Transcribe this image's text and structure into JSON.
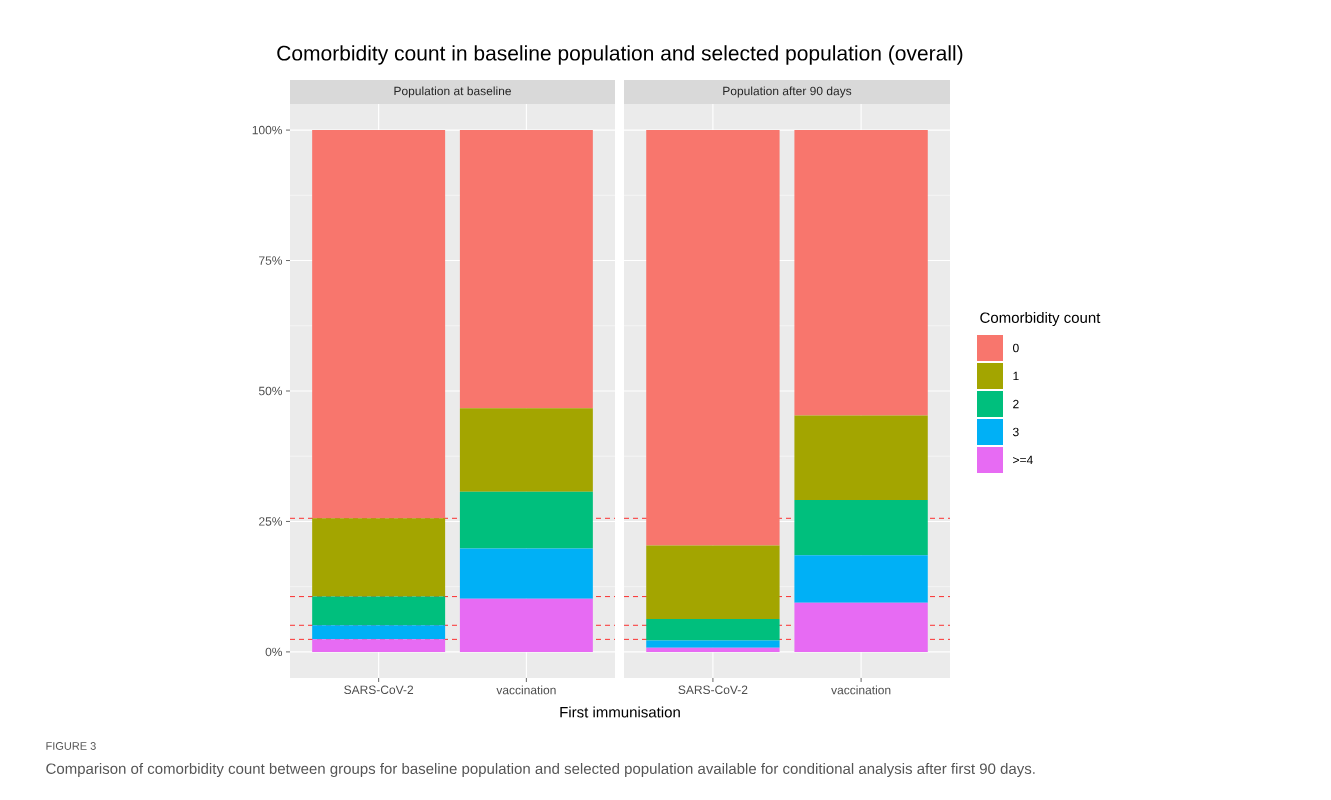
{
  "chart_data": [
    {
      "type": "bar",
      "title": "Comorbidity count in baseline population and selected population (overall)",
      "subtitle": "Population at baseline",
      "xlabel": "First immunisation",
      "categories": [
        "SARS-CoV-2",
        "vaccination"
      ],
      "stacked": true,
      "series": [
        {
          "name": ">=4",
          "color": "#e76bf3",
          "values": [
            2.4,
            10.2
          ]
        },
        {
          "name": "3",
          "color": "#00b0f6",
          "values": [
            2.7,
            9.6
          ]
        },
        {
          "name": "2",
          "color": "#00bf7d",
          "values": [
            5.5,
            10.9
          ]
        },
        {
          "name": "1",
          "color": "#a3a500",
          "values": [
            15.0,
            16.0
          ]
        },
        {
          "name": "0",
          "color": "#f8766d",
          "values": [
            74.4,
            53.3
          ]
        }
      ],
      "ylim": [
        -5,
        105
      ],
      "yticks": [
        {
          "value": 0,
          "label": "0%"
        },
        {
          "value": 25,
          "label": "25%"
        },
        {
          "value": 50,
          "label": "50%"
        },
        {
          "value": 75,
          "label": "75%"
        },
        {
          "value": 100,
          "label": "100%"
        }
      ],
      "grid": true,
      "ref_lines": [
        {
          "axis": "y",
          "value": 2.4,
          "color": "#ff0000",
          "line_style": "dashed"
        },
        {
          "axis": "y",
          "value": 5.1,
          "color": "#ff0000",
          "line_style": "dashed"
        },
        {
          "axis": "y",
          "value": 10.6,
          "color": "#ff0000",
          "line_style": "dashed"
        },
        {
          "axis": "y",
          "value": 25.6,
          "color": "#ff0000",
          "line_style": "dashed"
        }
      ],
      "legend": "right",
      "legend_title": "Comorbidity count",
      "annotations": [
        "FIGURE 3",
        "Comparison of comorbidity count between groups for baseline population and selected population available for conditional analysis after first 90 days."
      ]
    },
    {
      "type": "bar",
      "subtitle": "Population after 90 days",
      "categories": [
        "SARS-CoV-2",
        "vaccination"
      ],
      "stacked": true,
      "series": [
        {
          "color": "#e76bf3",
          "values": [
            0.8,
            9.4
          ]
        },
        {
          "color": "#00b0f6",
          "values": [
            1.4,
            9.1
          ]
        },
        {
          "color": "#00bf7d",
          "values": [
            4.1,
            10.6
          ]
        },
        {
          "color": "#a3a500",
          "values": [
            14.1,
            16.2
          ]
        },
        {
          "color": "#f8766d",
          "values": [
            79.6,
            54.7
          ]
        }
      ],
      "ylim": [
        -5,
        105
      ],
      "yticks": [
        {
          "value": 0,
          "label": null
        },
        {
          "value": 25,
          "label": null
        },
        {
          "value": 50,
          "label": null
        },
        {
          "value": 75,
          "label": null
        },
        {
          "value": 100,
          "label": null
        }
      ],
      "tick_labels": "x",
      "grid": true,
      "ref_lines": [
        {
          "axis": "y",
          "value": 2.4,
          "color": "#ff0000",
          "line_style": "dashed"
        },
        {
          "axis": "y",
          "value": 5.1,
          "color": "#ff0000",
          "line_style": "dashed"
        },
        {
          "axis": "y",
          "value": 10.6,
          "color": "#ff0000",
          "line_style": "dashed"
        },
        {
          "axis": "y",
          "value": 25.6,
          "color": "#ff0000",
          "line_style": "dashed"
        }
      ]
    }
  ]
}
